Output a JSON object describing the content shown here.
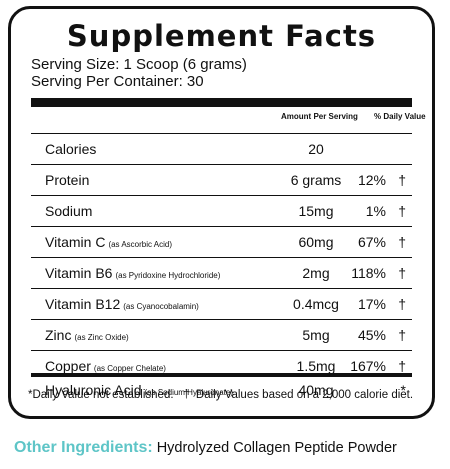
{
  "panel": {
    "title": "Supplement Facts",
    "serving_size": "Serving Size: 1 Scoop (6 grams)",
    "serving_per_container": "Serving Per Container: 30",
    "col_amount": "Amount Per Serving",
    "col_dv": "% Daily Value",
    "rows": [
      {
        "name": "Calories",
        "sub": "",
        "amount": "20",
        "dv": "",
        "mark": ""
      },
      {
        "name": "Protein",
        "sub": "",
        "amount": "6 grams",
        "dv": "12%",
        "mark": "†"
      },
      {
        "name": "Sodium",
        "sub": "",
        "amount": "15mg",
        "dv": "1%",
        "mark": "†"
      },
      {
        "name": "Vitamin C",
        "sub": "(as Ascorbic Acid)",
        "amount": "60mg",
        "dv": "67%",
        "mark": "†"
      },
      {
        "name": "Vitamin B6",
        "sub": "(as Pyridoxine Hydrochloride)",
        "amount": "2mg",
        "dv": "118%",
        "mark": "†"
      },
      {
        "name": "Vitamin B12",
        "sub": "(as Cyanocobalamin)",
        "amount": "0.4mcg",
        "dv": "17%",
        "mark": "†"
      },
      {
        "name": "Zinc",
        "sub": "(as Zinc Oxide)",
        "amount": "5mg",
        "dv": "45%",
        "mark": "†"
      },
      {
        "name": "Copper",
        "sub": "(as Copper Chelate)",
        "amount": "1.5mg",
        "dv": "167%",
        "mark": "†"
      }
    ],
    "special_row": {
      "name": "Hyaluronic Acid",
      "sub": "(as Sodium Hyaluronate)",
      "amount": "40mg",
      "dv": "",
      "mark": "*"
    },
    "footnote": "*Daily Value not established.   †  Daily Values based on a 2,000 calorie diet."
  },
  "other_ingredients": {
    "label": "Other Ingredients:",
    "value": "Hydrolyzed Collagen Peptide Powder",
    "label_color": "#5ec5c7"
  }
}
